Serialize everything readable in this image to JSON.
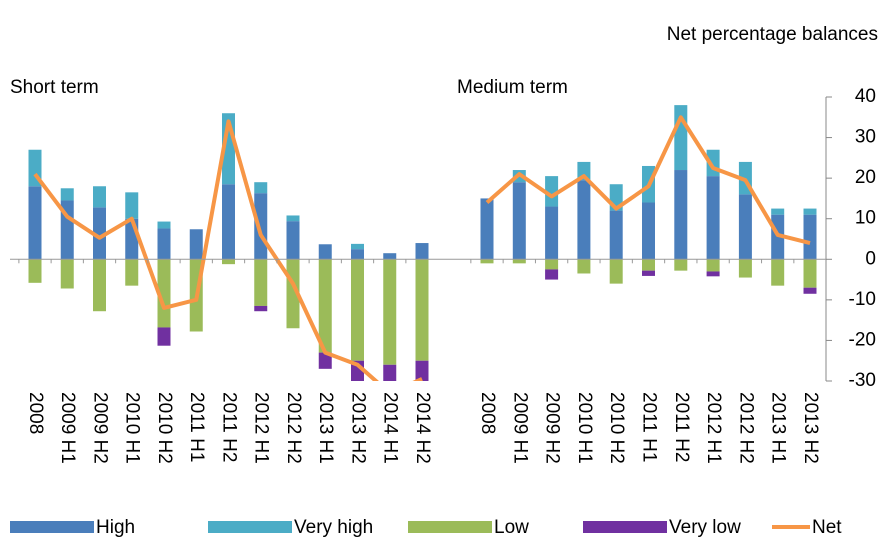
{
  "chart_data": {
    "type": "bar",
    "subtitle": "Net percentage balances",
    "ylim": [
      -30,
      40
    ],
    "yticks": [
      -30,
      -20,
      -10,
      0,
      10,
      20,
      30,
      40
    ],
    "series": [
      {
        "name": "High",
        "color": "#4a7ebb"
      },
      {
        "name": "Very high",
        "color": "#4bacc6"
      },
      {
        "name": "Low",
        "color": "#9bbb59"
      },
      {
        "name": "Very low",
        "color": "#7030a0"
      },
      {
        "name": "Net",
        "color": "#f79646",
        "type": "line"
      }
    ],
    "panels": [
      {
        "title": "Short term",
        "categories": [
          "2008",
          "2009 H1",
          "2009 H2",
          "2010 H1",
          "2010 H2",
          "2011 H1",
          "2011 H2",
          "2012 H1",
          "2012 H2",
          "2013 H1",
          "2013 H2",
          "2014 H1",
          "2014 H2"
        ],
        "series": [
          {
            "values": [
              18,
              14.5,
              12.8,
              10,
              7.6,
              7.4,
              18.5,
              16.3,
              9.4,
              3.7,
              2.5,
              1.5,
              4
            ]
          },
          {
            "values": [
              9,
              3,
              5.2,
              6.5,
              1.7,
              0,
              17.5,
              2.7,
              1.4,
              0,
              1.3,
              0,
              0
            ]
          },
          {
            "values": [
              -5.8,
              -7.2,
              -12.8,
              -6.5,
              -16.8,
              -17.8,
              -1.2,
              -11.5,
              -17,
              -23,
              -25,
              -26,
              -25
            ]
          },
          {
            "values": [
              0,
              0,
              0,
              0,
              -4.5,
              0,
              0,
              -1.3,
              0,
              -4,
              -5,
              -4,
              -5
            ]
          },
          {
            "values": [
              21,
              10.5,
              5.3,
              10,
              -12,
              -10,
              34,
              6,
              -6,
              -23,
              -26,
              -33,
              -29.5
            ]
          }
        ]
      },
      {
        "title": "Medium term",
        "categories": [
          "2008",
          "2009 H1",
          "2009 H2",
          "2010 H1",
          "2010 H2",
          "2011 H1",
          "2011 H2",
          "2012 H1",
          "2012 H2",
          "2013 H1",
          "2013 H2"
        ],
        "series": [
          {
            "values": [
              15,
              19,
              13,
              19.5,
              12,
              14,
              22,
              20.5,
              16,
              11,
              11
            ]
          },
          {
            "values": [
              0,
              3,
              7.5,
              4.5,
              6.5,
              9,
              16,
              6.5,
              8,
              1.5,
              1.5
            ]
          },
          {
            "values": [
              -1,
              -1,
              -2.5,
              -3.5,
              -6,
              -2.8,
              -2.8,
              -3,
              -4.5,
              -6.5,
              -7
            ]
          },
          {
            "values": [
              0,
              0,
              -2.5,
              0,
              0,
              -1.3,
              0,
              -1.2,
              0,
              0,
              -1.5
            ]
          },
          {
            "values": [
              14,
              21,
              15.5,
              20.5,
              12.5,
              18,
              35,
              22.5,
              19.5,
              6,
              4
            ]
          }
        ]
      }
    ]
  }
}
